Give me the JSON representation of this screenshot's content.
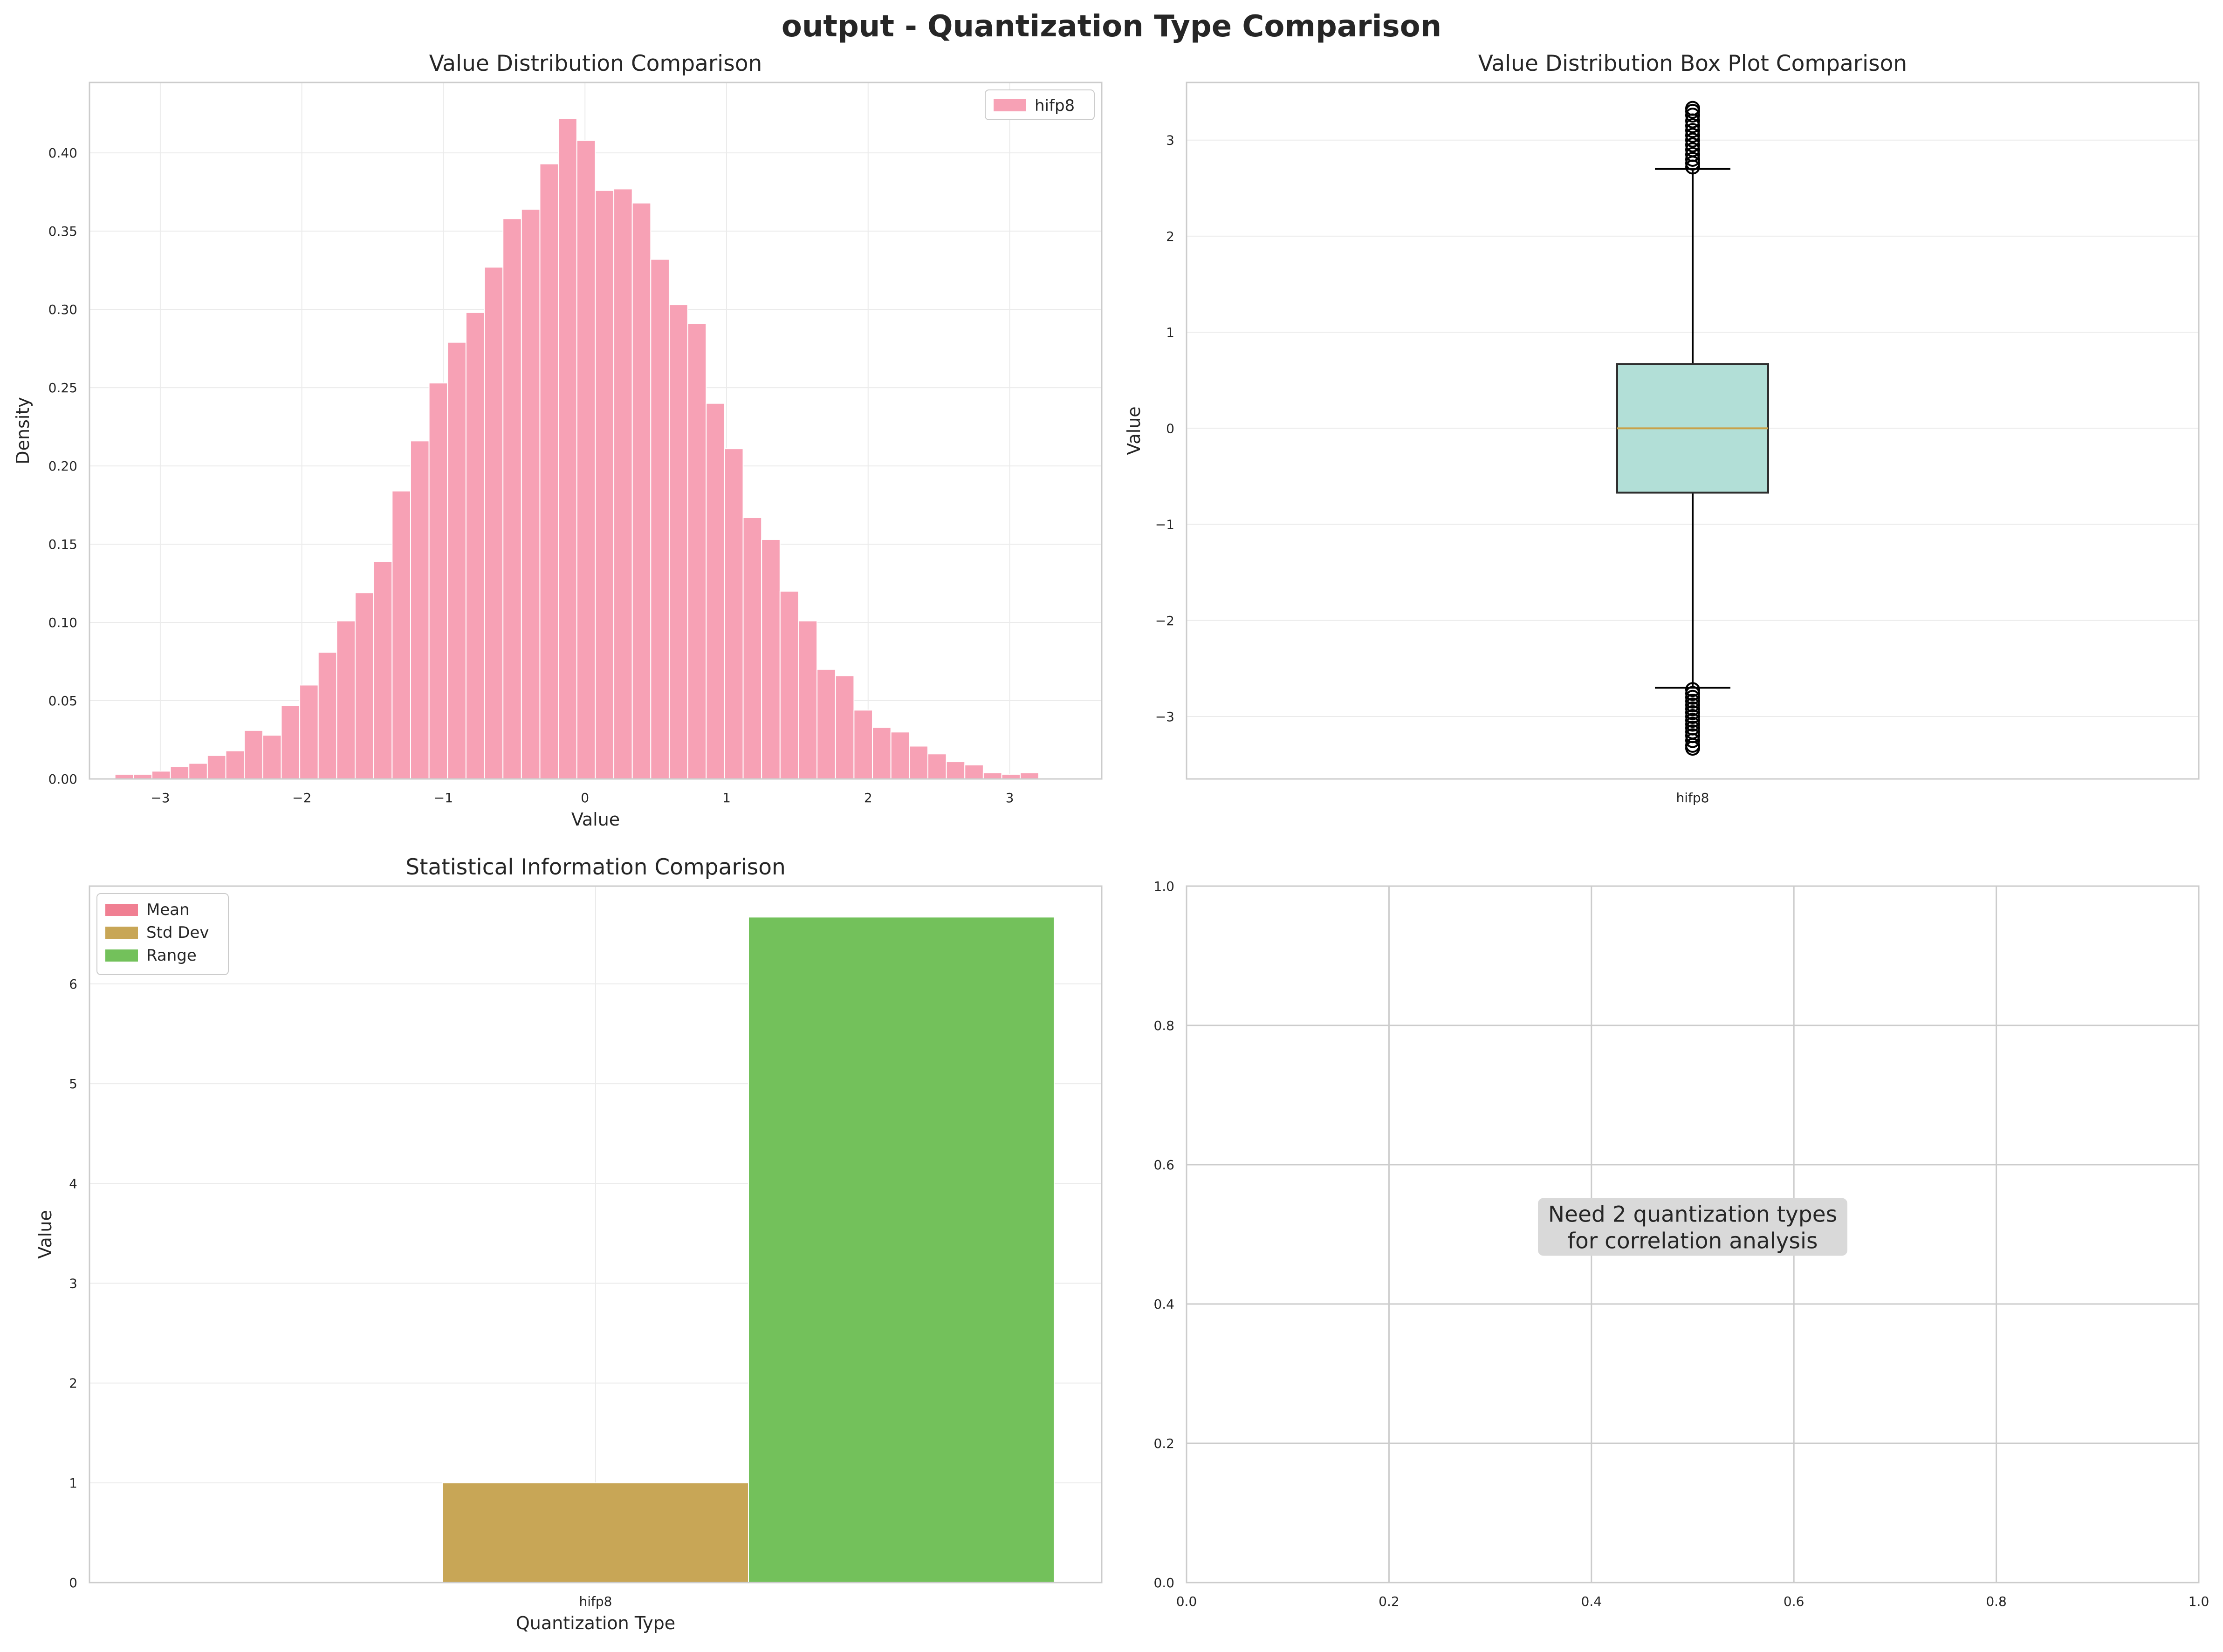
{
  "figure": {
    "suptitle": "output - Quantization Type Comparison"
  },
  "chart_data": [
    {
      "type": "bar",
      "subtype": "histogram",
      "title": "Value Distribution Comparison",
      "xlabel": "Value",
      "ylabel": "Density",
      "xlim": [
        -3.5,
        3.65
      ],
      "ylim": [
        0,
        0.445
      ],
      "xticks": [
        -3,
        -2,
        -1,
        0,
        1,
        2,
        3
      ],
      "xtick_labels": [
        "−3",
        "−2",
        "−1",
        "0",
        "1",
        "2",
        "3"
      ],
      "yticks": [
        0,
        0.05,
        0.1,
        0.15,
        0.2,
        0.25,
        0.3,
        0.35,
        0.4
      ],
      "ytick_labels": [
        "0.00",
        "0.05",
        "0.10",
        "0.15",
        "0.20",
        "0.25",
        "0.30",
        "0.35",
        "0.40"
      ],
      "grid": true,
      "legend_position": "upper right",
      "bin_start": -3.32,
      "bin_width": 0.1305,
      "series": [
        {
          "name": "hifp8",
          "color": "#f7a1b5",
          "values": [
            0.003,
            0.003,
            0.005,
            0.008,
            0.01,
            0.015,
            0.018,
            0.031,
            0.028,
            0.047,
            0.06,
            0.081,
            0.101,
            0.119,
            0.139,
            0.184,
            0.216,
            0.253,
            0.279,
            0.298,
            0.327,
            0.358,
            0.364,
            0.393,
            0.422,
            0.408,
            0.376,
            0.377,
            0.368,
            0.332,
            0.303,
            0.291,
            0.24,
            0.211,
            0.167,
            0.153,
            0.12,
            0.101,
            0.07,
            0.066,
            0.044,
            0.033,
            0.03,
            0.021,
            0.016,
            0.011,
            0.009,
            0.004,
            0.003,
            0.004
          ]
        }
      ]
    },
    {
      "type": "box",
      "title": "Value Distribution Box Plot Comparison",
      "xlabel": "",
      "ylabel": "Value",
      "ylim": [
        -3.65,
        3.6
      ],
      "yticks": [
        -3,
        -2,
        -1,
        0,
        1,
        2,
        3
      ],
      "ytick_labels": [
        "−3",
        "−2",
        "−1",
        "0",
        "1",
        "2",
        "3"
      ],
      "categories": [
        "hifp8"
      ],
      "grid": true,
      "boxes": [
        {
          "name": "hifp8",
          "color": "#b2dfd7",
          "median_color": "#c8a24a",
          "q1": -0.67,
          "median": 0.0,
          "q3": 0.67,
          "whisker_low": -2.7,
          "whisker_high": 2.7,
          "outliers_low": [
            -2.72,
            -2.76,
            -2.8,
            -2.84,
            -2.88,
            -2.92,
            -2.96,
            -3.0,
            -3.04,
            -3.08,
            -3.12,
            -3.16,
            -3.2,
            -3.25,
            -3.3,
            -3.33
          ],
          "outliers_high": [
            2.72,
            2.76,
            2.8,
            2.85,
            2.9,
            2.95,
            3.0,
            3.05,
            3.1,
            3.15,
            3.2,
            3.26,
            3.3,
            3.33
          ]
        }
      ]
    },
    {
      "type": "bar",
      "title": "Statistical Information Comparison",
      "xlabel": "Quantization Type",
      "ylabel": "Value",
      "categories": [
        "hifp8"
      ],
      "ylim": [
        0,
        6.98
      ],
      "yticks": [
        0,
        1,
        2,
        3,
        4,
        5,
        6
      ],
      "ytick_labels": [
        "0",
        "1",
        "2",
        "3",
        "4",
        "5",
        "6"
      ],
      "grid": true,
      "legend_position": "upper left",
      "series": [
        {
          "name": "Mean",
          "color": "#f07f92",
          "values": [
            0.0
          ]
        },
        {
          "name": "Std Dev",
          "color": "#c8a656",
          "values": [
            1.0
          ]
        },
        {
          "name": "Range",
          "color": "#73c15b",
          "values": [
            6.67
          ]
        }
      ]
    },
    {
      "type": "scatter",
      "title": "",
      "xlabel": "",
      "ylabel": "",
      "xlim": [
        0,
        1
      ],
      "ylim": [
        0,
        1
      ],
      "xticks": [
        0,
        0.2,
        0.4,
        0.6,
        0.8,
        1.0
      ],
      "xtick_labels": [
        "0.0",
        "0.2",
        "0.4",
        "0.6",
        "0.8",
        "1.0"
      ],
      "yticks": [
        0,
        0.2,
        0.4,
        0.6,
        0.8,
        1.0
      ],
      "ytick_labels": [
        "0.0",
        "0.2",
        "0.4",
        "0.6",
        "0.8",
        "1.0"
      ],
      "grid": true,
      "points": [],
      "annotation": {
        "lines": [
          "Need 2 quantization types",
          "for correlation analysis"
        ]
      }
    }
  ]
}
